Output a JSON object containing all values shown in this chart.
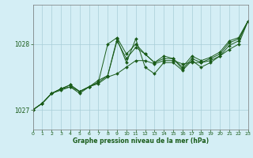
{
  "xlabel": "Graphe pression niveau de la mer (hPa)",
  "ylabel": "",
  "bg_color": "#d4eef5",
  "grid_color": "#a8cdd8",
  "line_color": "#1a5c1a",
  "marker_color": "#1a5c1a",
  "text_color": "#1a5c1a",
  "xlim": [
    0,
    23
  ],
  "ylim": [
    1026.7,
    1028.6
  ],
  "yticks": [
    1027,
    1028
  ],
  "xticks": [
    0,
    1,
    2,
    3,
    4,
    5,
    6,
    7,
    8,
    9,
    10,
    11,
    12,
    13,
    14,
    15,
    16,
    17,
    18,
    19,
    20,
    21,
    22,
    23
  ],
  "series": [
    [
      1027.0,
      1027.1,
      1027.25,
      1027.3,
      1027.35,
      1027.25,
      1027.35,
      1027.4,
      1027.5,
      1027.55,
      1027.65,
      1027.75,
      1027.75,
      1027.7,
      1027.75,
      1027.75,
      1027.7,
      1027.72,
      1027.72,
      1027.75,
      1027.82,
      1027.92,
      1028.0,
      1028.35
    ],
    [
      1027.0,
      1027.1,
      1027.25,
      1027.32,
      1027.35,
      1027.28,
      1027.35,
      1027.42,
      1027.52,
      1028.05,
      1027.78,
      1027.95,
      1027.85,
      1027.72,
      1027.78,
      1027.78,
      1027.62,
      1027.78,
      1027.72,
      1027.78,
      1027.85,
      1028.02,
      1028.08,
      1028.35
    ],
    [
      1027.0,
      1027.1,
      1027.25,
      1027.32,
      1027.38,
      1027.28,
      1027.35,
      1027.42,
      1028.0,
      1028.1,
      1027.85,
      1028.0,
      1027.85,
      1027.72,
      1027.82,
      1027.78,
      1027.65,
      1027.82,
      1027.75,
      1027.8,
      1027.88,
      1028.05,
      1028.1,
      1028.35
    ],
    [
      1027.0,
      1027.1,
      1027.25,
      1027.32,
      1027.38,
      1027.28,
      1027.35,
      1027.45,
      1027.52,
      1028.08,
      1027.72,
      1028.08,
      1027.65,
      1027.55,
      1027.72,
      1027.72,
      1027.6,
      1027.75,
      1027.65,
      1027.72,
      1027.82,
      1027.98,
      1028.05,
      1028.35
    ]
  ]
}
